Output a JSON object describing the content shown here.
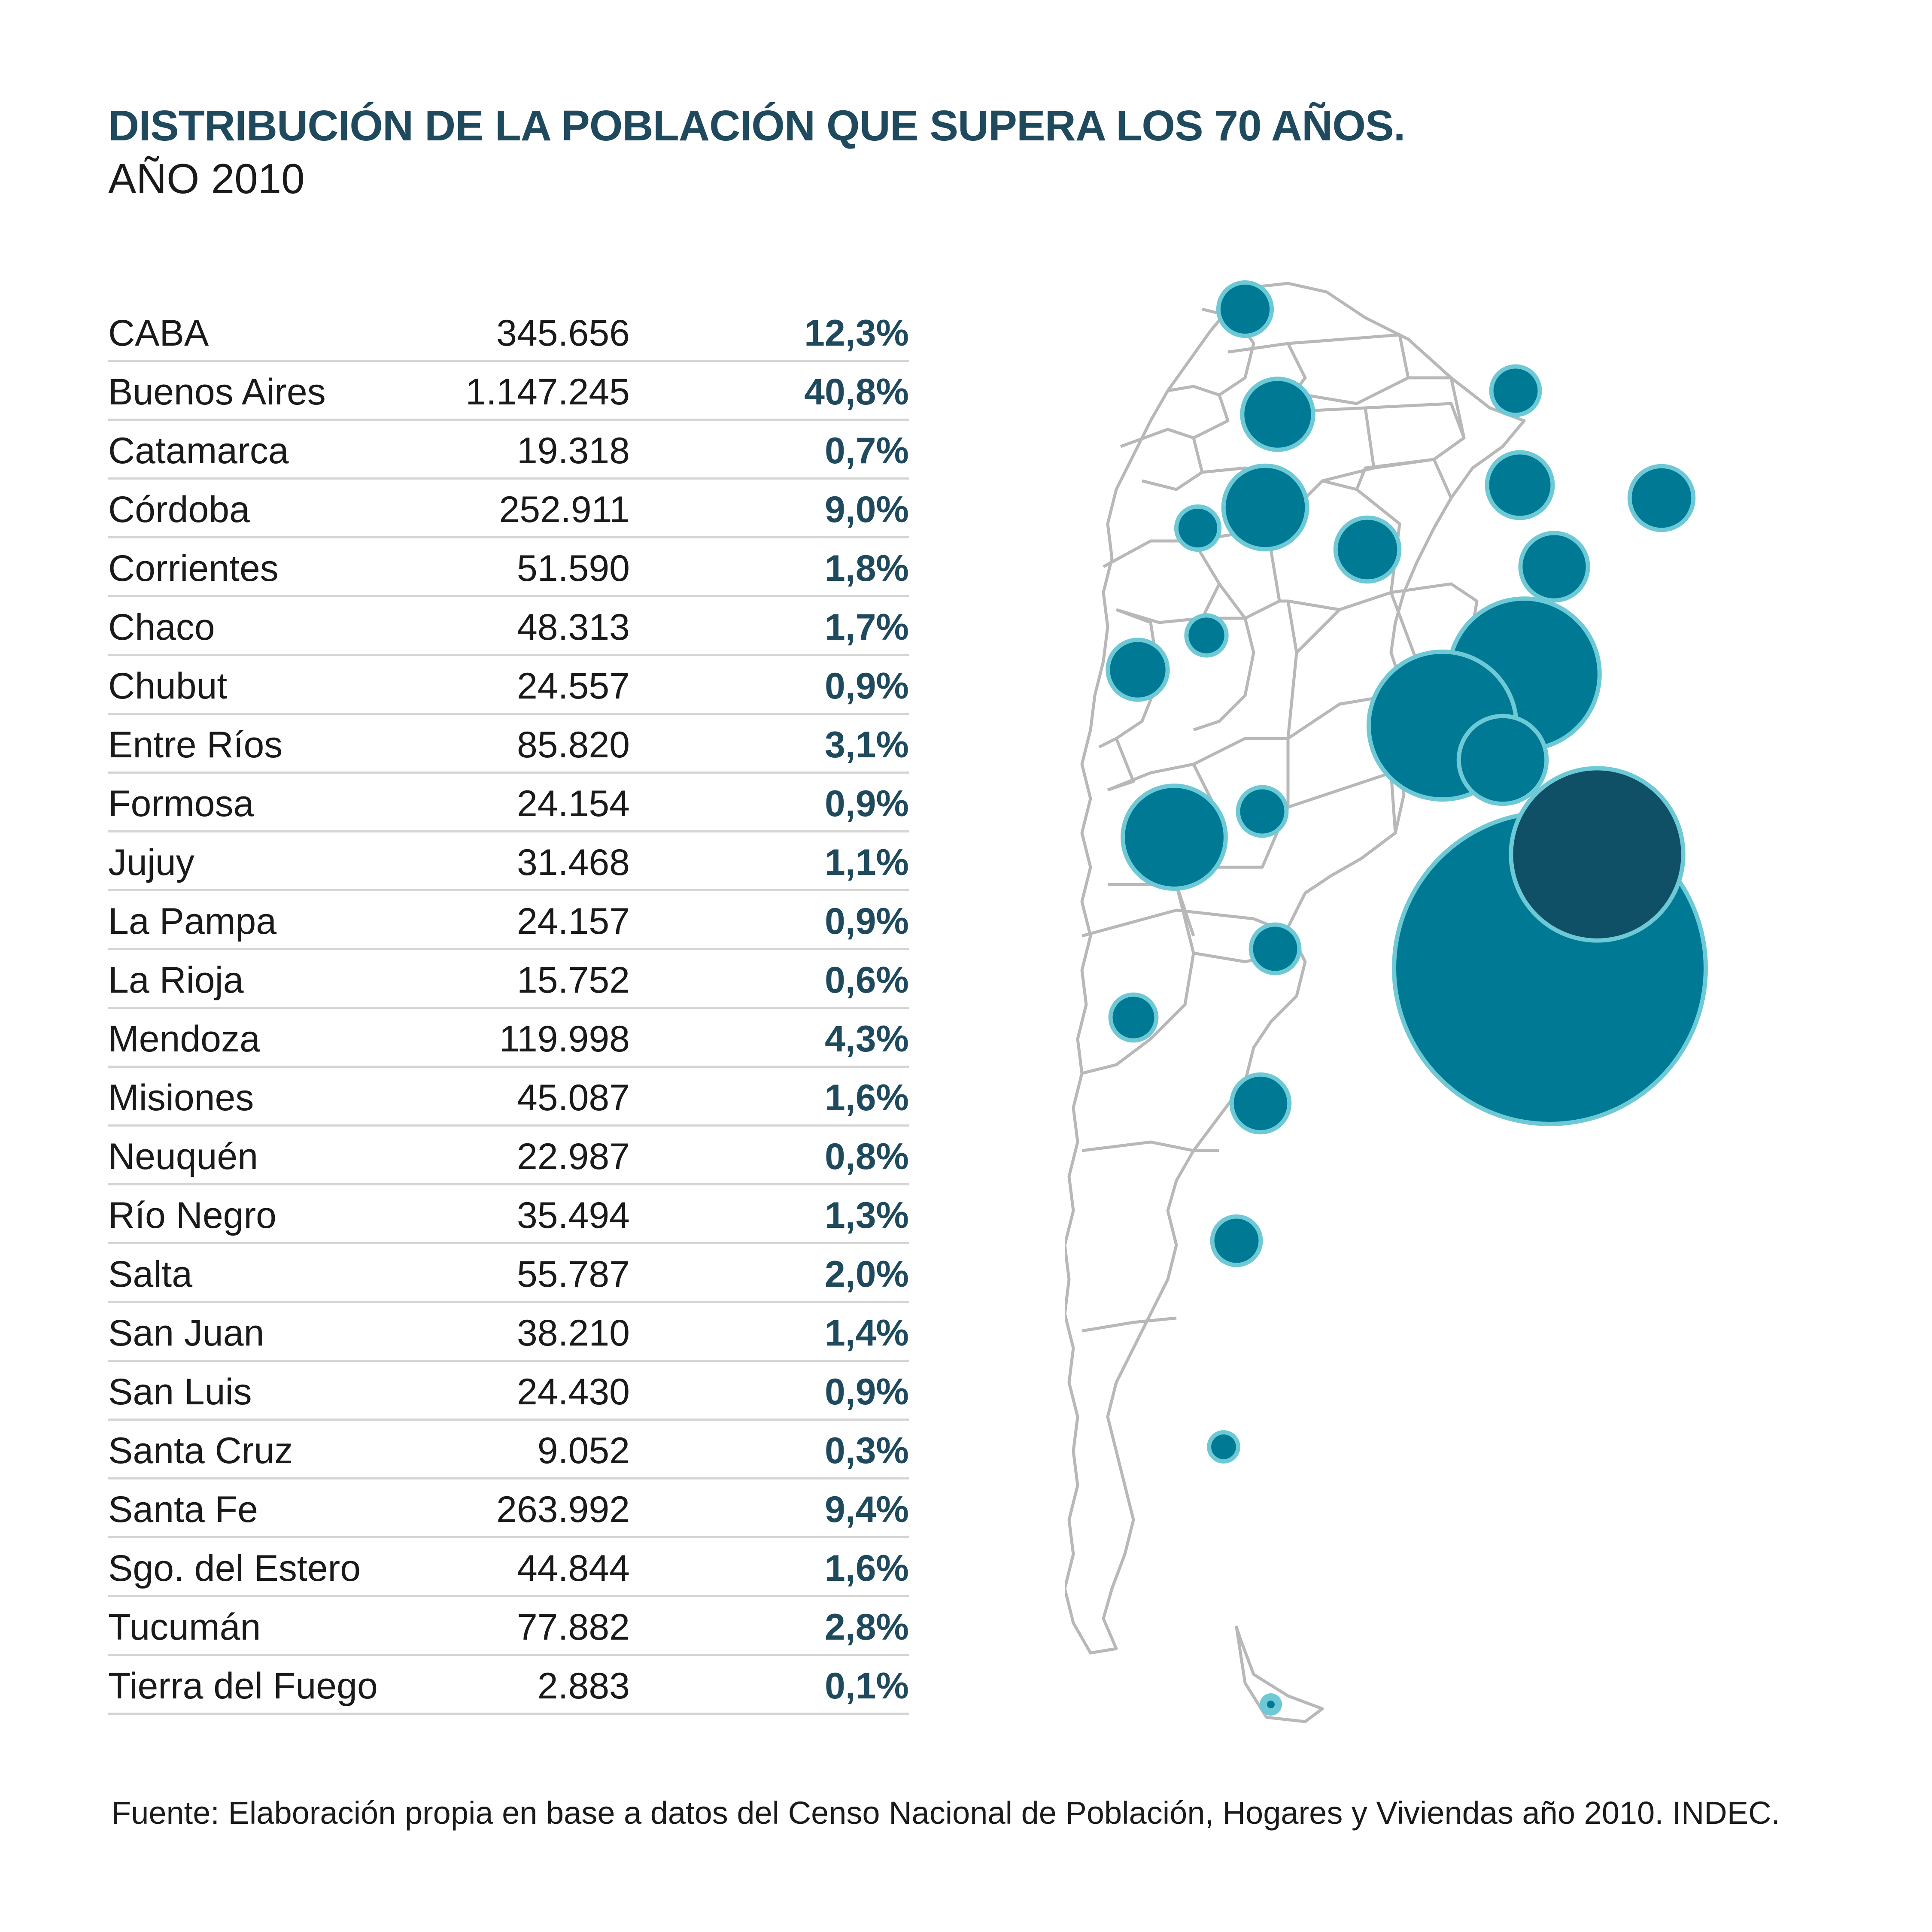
{
  "title": "DISTRIBUCIÓN DE LA POBLACIÓN QUE SUPERA LOS 70 AÑOS.",
  "subtitle": "AÑO 2010",
  "rows": [
    {
      "name": "CABA",
      "value": "345.656",
      "pct": "12,3%"
    },
    {
      "name": "Buenos Aires",
      "value": "1.147.245",
      "pct": "40,8%"
    },
    {
      "name": "Catamarca",
      "value": "19.318",
      "pct": "0,7%"
    },
    {
      "name": "Córdoba",
      "value": "252.911",
      "pct": "9,0%"
    },
    {
      "name": "Corrientes",
      "value": "51.590",
      "pct": "1,8%"
    },
    {
      "name": "Chaco",
      "value": "48.313",
      "pct": "1,7%"
    },
    {
      "name": "Chubut",
      "value": "24.557",
      "pct": "0,9%"
    },
    {
      "name": "Entre Ríos",
      "value": "85.820",
      "pct": "3,1%"
    },
    {
      "name": "Formosa",
      "value": "24.154",
      "pct": "0,9%"
    },
    {
      "name": "Jujuy",
      "value": "31.468",
      "pct": "1,1%"
    },
    {
      "name": "La Pampa",
      "value": "24.157",
      "pct": "0,9%"
    },
    {
      "name": "La Rioja",
      "value": "15.752",
      "pct": "0,6%"
    },
    {
      "name": "Mendoza",
      "value": "119.998",
      "pct": "4,3%"
    },
    {
      "name": "Misiones",
      "value": "45.087",
      "pct": "1,6%"
    },
    {
      "name": "Neuquén",
      "value": "22.987",
      "pct": "0,8%"
    },
    {
      "name": "Río Negro",
      "value": "35.494",
      "pct": "1,3%"
    },
    {
      "name": "Salta",
      "value": "55.787",
      "pct": "2,0%"
    },
    {
      "name": "San Juan",
      "value": "38.210",
      "pct": "1,4%"
    },
    {
      "name": "San Luis",
      "value": "24.430",
      "pct": "0,9%"
    },
    {
      "name": "Santa Cruz",
      "value": "9.052",
      "pct": "0,3%"
    },
    {
      "name": "Santa Fe",
      "value": "263.992",
      "pct": "9,4%"
    },
    {
      "name": "Sgo. del Estero",
      "value": "44.844",
      "pct": "1,6%"
    },
    {
      "name": "Tucumán",
      "value": "77.882",
      "pct": "2,8%"
    },
    {
      "name": "Tierra del Fuego",
      "value": "2.883",
      "pct": "0,1%"
    }
  ],
  "source": "Fuente: Elaboración propia en base a datos del Censo Nacional de Población, Hogares y Viviendas año 2010. INDEC.",
  "colors": {
    "bubble_fill": "#007a94",
    "bubble_ring": "#6ec9d6",
    "caba_fill": "#04435a",
    "title": "#1f4a5e",
    "province_stroke": "#b8b8b8"
  }
}
